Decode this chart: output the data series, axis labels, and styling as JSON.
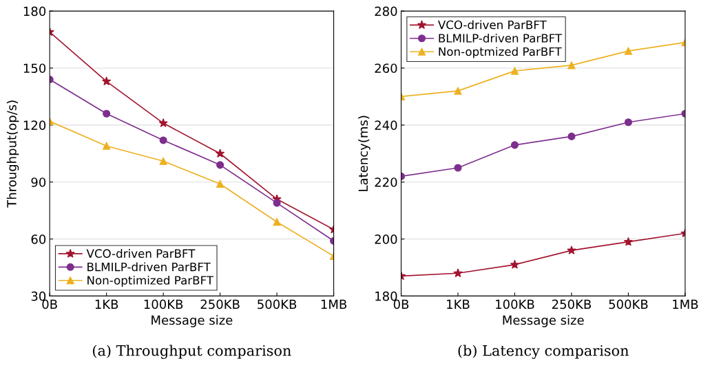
{
  "chart_data": [
    {
      "type": "line",
      "xlabel": "Message size",
      "ylabel": "Throughput(op/s)",
      "categories": [
        "0B",
        "1KB",
        "100KB",
        "250KB",
        "500KB",
        "1MB"
      ],
      "ylim": [
        30,
        180
      ],
      "yticks": [
        30,
        60,
        90,
        120,
        150,
        180
      ],
      "grid": "y",
      "legend": "bottom left",
      "annotations": [
        "(a) Throughput comparison"
      ],
      "series": [
        {
          "name": "VCO-driven ParBFT",
          "color": "#a2142f",
          "marker": "star",
          "values": [
            169,
            143,
            121,
            105,
            81,
            65
          ]
        },
        {
          "name": "BLMILP-driven ParBFT",
          "color": "#7e2f8e",
          "marker": "circle",
          "values": [
            144,
            126,
            112,
            99,
            79,
            59
          ]
        },
        {
          "name": "Non-optimized ParBFT",
          "color": "#edb120",
          "marker": "triangle",
          "values": [
            122,
            109,
            101,
            89,
            69,
            51
          ]
        }
      ]
    },
    {
      "type": "line",
      "xlabel": "Message size",
      "ylabel": "Latency(ms)",
      "categories": [
        "0B",
        "1KB",
        "100KB",
        "250KB",
        "500KB",
        "1MB"
      ],
      "ylim": [
        180,
        280
      ],
      "yticks": [
        180,
        200,
        220,
        240,
        260,
        280
      ],
      "grid": "y",
      "legend": "top left",
      "annotations": [
        "(b) Latency comparison"
      ],
      "series": [
        {
          "name": "VCO-driven ParBFT",
          "color": "#a2142f",
          "marker": "star",
          "values": [
            187,
            188,
            191,
            196,
            199,
            202
          ]
        },
        {
          "name": "BLMILP-driven ParBFT",
          "color": "#7e2f8e",
          "marker": "circle",
          "values": [
            222,
            225,
            233,
            236,
            241,
            244
          ]
        },
        {
          "name": "Non-optmized ParBFT",
          "color": "#edb120",
          "marker": "triangle",
          "values": [
            250,
            252,
            259,
            261,
            266,
            269
          ]
        }
      ]
    }
  ]
}
